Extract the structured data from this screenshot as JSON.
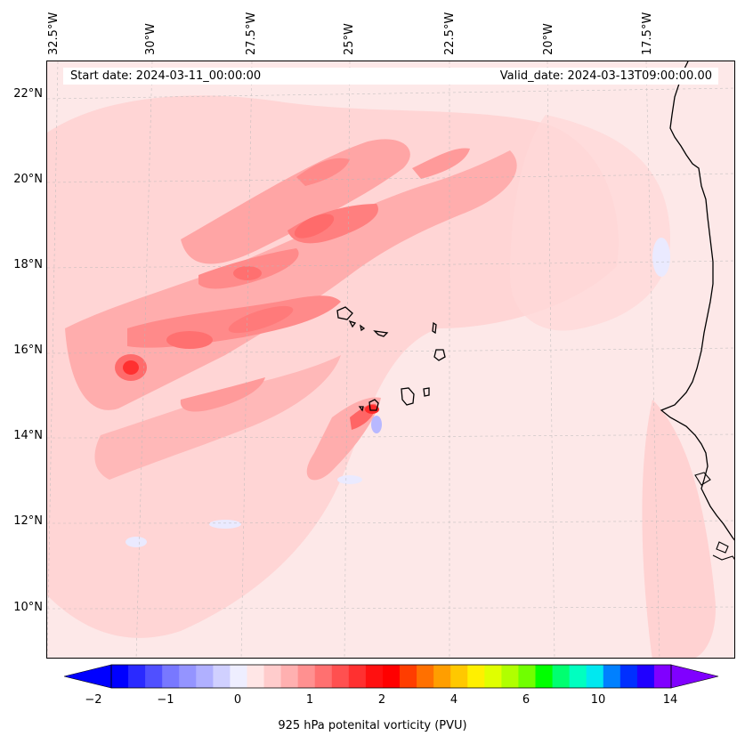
{
  "map": {
    "start_date": "Start date: 2024-03-11_00:00:00",
    "valid_date": "Valid_date: 2024-03-13T09:00:00.00",
    "lat_labels": [
      "22°N",
      "20°N",
      "18°N",
      "16°N",
      "14°N",
      "12°N",
      "10°N"
    ],
    "lon_labels": [
      "32.5°W",
      "30°W",
      "27.5°W",
      "25°W",
      "22.5°W",
      "20°W",
      "17.5°W"
    ],
    "background_color": "#fde8e8",
    "positive_colors": [
      "#ffd0d0",
      "#ffb0b0",
      "#ff9090",
      "#ff6b6b",
      "#ff3838"
    ],
    "negative_color": "#eaeaff"
  },
  "colorbar": {
    "label": "925 hPa potenital vorticity (PVU)",
    "tick_labels": [
      "−2",
      "−1",
      "0",
      "1",
      "2",
      "4",
      "6",
      "10",
      "14"
    ],
    "colors": [
      "#0000ff",
      "#2a2aff",
      "#5050ff",
      "#7878ff",
      "#9494ff",
      "#b0b0ff",
      "#d0d0ff",
      "#eeeeff",
      "#ffe6e6",
      "#ffcccc",
      "#ffb0b0",
      "#ff9090",
      "#ff7070",
      "#ff5050",
      "#ff3030",
      "#ff1010",
      "#ff0000",
      "#ff3d00",
      "#ff7000",
      "#ff9e00",
      "#ffc800",
      "#fff000",
      "#e0ff00",
      "#b0ff00",
      "#70ff00",
      "#00ff00",
      "#00ff70",
      "#00ffc0",
      "#00e8f0",
      "#0080ff",
      "#0030ff",
      "#2000ff",
      "#8000ff"
    ]
  }
}
